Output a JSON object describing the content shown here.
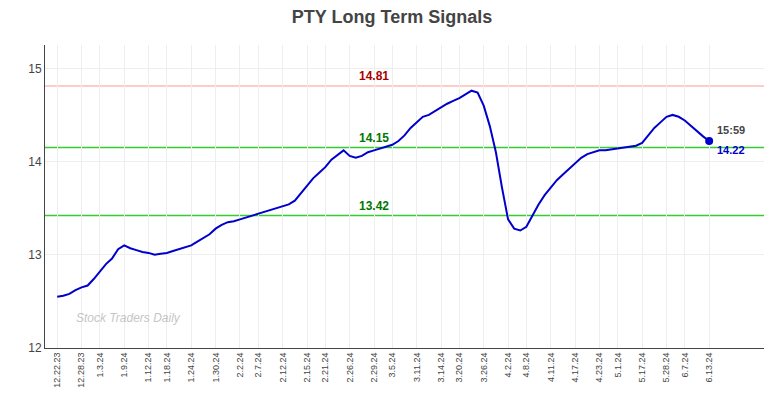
{
  "chart_data": {
    "type": "line",
    "title": "PTY Long Term Signals",
    "categories": [
      "12.22.23",
      null,
      null,
      null,
      "12.28.23",
      null,
      null,
      "1.3.24",
      null,
      null,
      null,
      "1.9.24",
      null,
      null,
      null,
      "1.12.24",
      null,
      null,
      "1.18.24",
      null,
      null,
      null,
      "1.24.24",
      null,
      null,
      null,
      "1.30.24",
      null,
      null,
      null,
      "2.2.24",
      null,
      null,
      "2.7.24",
      null,
      null,
      null,
      "2.12.24",
      null,
      null,
      null,
      "2.15.24",
      null,
      null,
      "2.21.24",
      null,
      null,
      null,
      "2.26.24",
      null,
      null,
      null,
      "2.29.24",
      null,
      null,
      "3.5.24",
      null,
      null,
      null,
      "3.11.24",
      null,
      null,
      null,
      "3.14.24",
      null,
      null,
      "3.20.24",
      null,
      null,
      null,
      "3.26.24",
      null,
      null,
      null,
      "4.2.24",
      null,
      null,
      "4.8.24",
      null,
      null,
      null,
      "4.11.24",
      null,
      null,
      null,
      "4.17.24",
      null,
      null,
      null,
      "4.23.24",
      null,
      null,
      "5.1.24",
      null,
      null,
      null,
      "5.17.24",
      null,
      null,
      null,
      "5.28.24",
      null,
      null,
      "6.7.24",
      null,
      null,
      null,
      "6.13.24"
    ],
    "values": [
      12.55,
      12.56,
      12.58,
      12.62,
      12.65,
      12.67,
      12.74,
      12.82,
      12.9,
      12.96,
      13.06,
      13.1,
      13.07,
      13.05,
      13.03,
      13.02,
      13.0,
      13.01,
      13.02,
      13.04,
      13.06,
      13.08,
      13.1,
      13.14,
      13.18,
      13.22,
      13.28,
      13.32,
      13.35,
      13.36,
      13.38,
      13.4,
      13.42,
      13.44,
      13.46,
      13.48,
      13.5,
      13.52,
      13.54,
      13.58,
      13.66,
      13.74,
      13.82,
      13.88,
      13.94,
      14.02,
      14.07,
      14.12,
      14.06,
      14.04,
      14.06,
      14.1,
      14.12,
      14.14,
      14.16,
      14.18,
      14.22,
      14.28,
      14.36,
      14.42,
      14.48,
      14.5,
      14.54,
      14.58,
      14.62,
      14.65,
      14.68,
      14.72,
      14.76,
      14.74,
      14.6,
      14.38,
      14.1,
      13.72,
      13.38,
      13.28,
      13.26,
      13.3,
      13.42,
      13.54,
      13.64,
      13.72,
      13.8,
      13.86,
      13.92,
      13.98,
      14.04,
      14.08,
      14.1,
      14.12,
      14.12,
      14.13,
      14.14,
      14.15,
      14.16,
      14.17,
      14.2,
      14.28,
      14.36,
      14.42,
      14.48,
      14.5,
      14.48,
      14.44,
      14.38,
      14.32,
      14.27,
      14.22
    ],
    "color": "#0000cc",
    "ylim": [
      12.0,
      15.25
    ],
    "yticks": [
      12,
      13,
      14,
      15
    ],
    "grid": true,
    "reference_lines": [
      {
        "value": 14.81,
        "label": "14.81",
        "color": "#ffbbbb",
        "label_color": "#aa0000",
        "category": "2.29.24"
      },
      {
        "value": 14.15,
        "label": "14.15",
        "color": "#33cc33",
        "label_color": "#007700",
        "category": "2.29.24"
      },
      {
        "value": 13.42,
        "label": "13.42",
        "color": "#33cc33",
        "label_color": "#007700",
        "category": "2.29.24"
      }
    ],
    "end_label": {
      "time": "15:59",
      "value": "14.22"
    },
    "watermark": {
      "text": "Stock Traders Daily",
      "color": "gray"
    }
  }
}
